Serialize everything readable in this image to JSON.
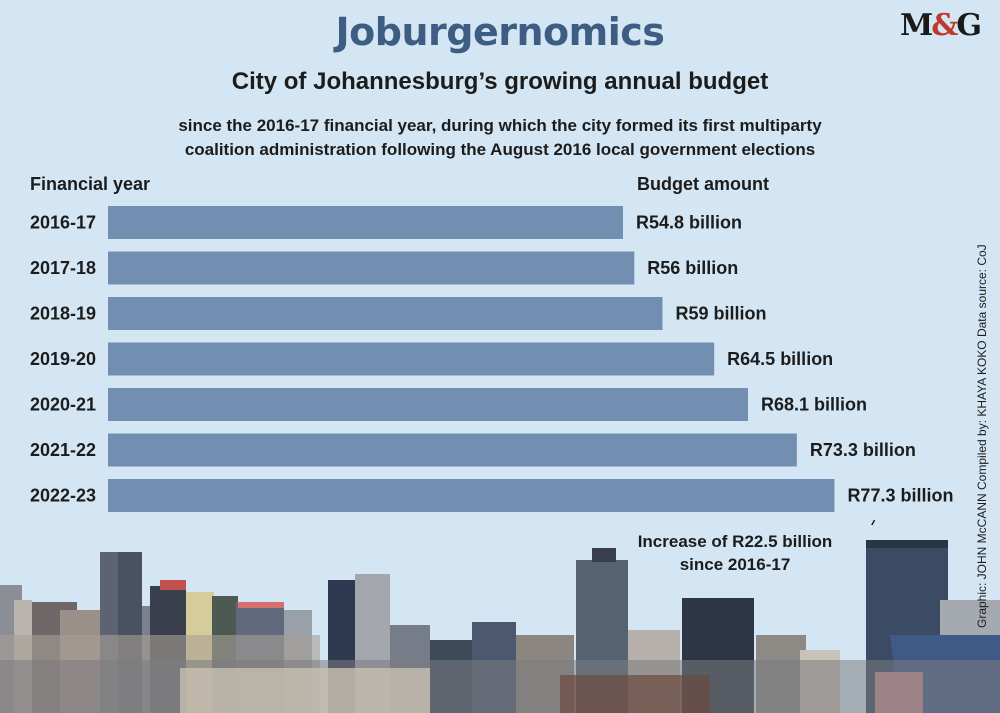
{
  "header": {
    "title": "Joburgernomics",
    "logo": "M&G",
    "subtitle": "City of Johannesburg’s growing annual budget",
    "description_line1": "since the 2016-17 financial year, during which the city formed its first multiparty",
    "description_line2": "coalition administration following the August 2016 local government elections"
  },
  "credit": "Graphic: JOHN McCANN  Compiled by: KHAYA KOKO  Data source: CoJ",
  "annotation": {
    "line1": "Increase of R22.5 billion",
    "line2": "since 2016-17"
  },
  "colors": {
    "bar": "#728fb1",
    "background": "#d4e6f3",
    "title": "#3e5d83"
  },
  "chart_data": {
    "type": "bar",
    "orientation": "horizontal",
    "xlabel": "Budget amount",
    "ylabel": "Financial year",
    "unit": "R billion",
    "categories": [
      "2016-17",
      "2017-18",
      "2018-19",
      "2019-20",
      "2020-21",
      "2021-22",
      "2022-23"
    ],
    "values": [
      54.8,
      56,
      59,
      64.5,
      68.1,
      73.3,
      77.3
    ],
    "data_labels": [
      "R54.8 billion",
      "R56 billion",
      "R59 billion",
      "R64.5 billion",
      "R68.1 billion",
      "R73.3 billion",
      "R77.3 billion"
    ],
    "grid": false
  }
}
